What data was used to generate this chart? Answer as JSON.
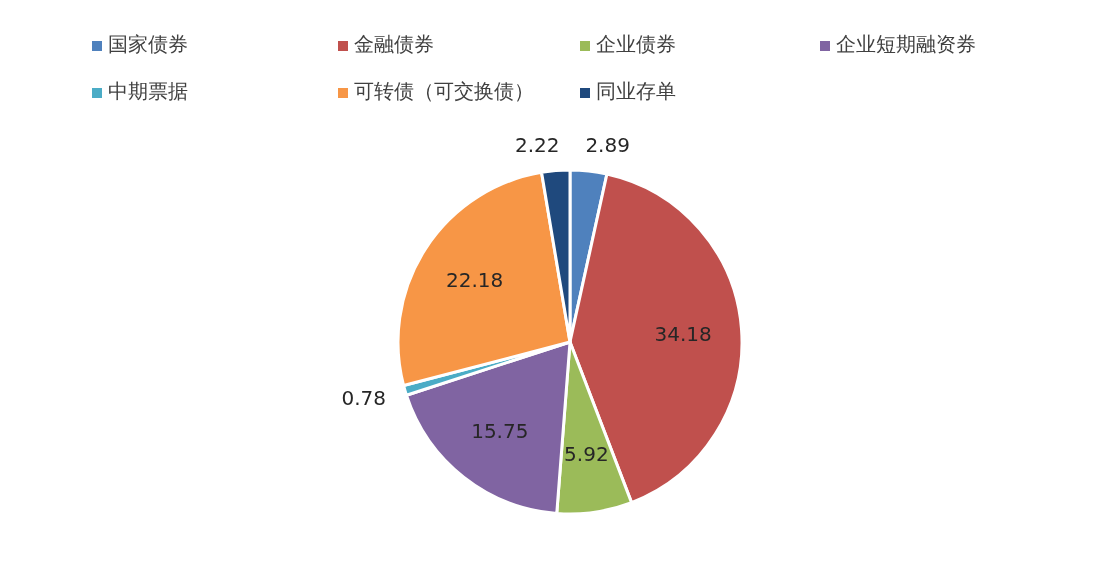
{
  "chart_data": {
    "type": "pie",
    "categories": [
      "国家债券",
      "金融债券",
      "企业债券",
      "企业短期融资券",
      "中期票据",
      "可转债（可交换债）",
      "同业存单"
    ],
    "values": [
      2.89,
      34.18,
      5.92,
      15.75,
      0.78,
      22.18,
      2.22
    ],
    "colors": [
      "#4f81bd",
      "#c0504d",
      "#9bbb59",
      "#8064a2",
      "#4bacc6",
      "#f79646",
      "#1f497d"
    ],
    "data_labels": true,
    "legend": "top"
  }
}
